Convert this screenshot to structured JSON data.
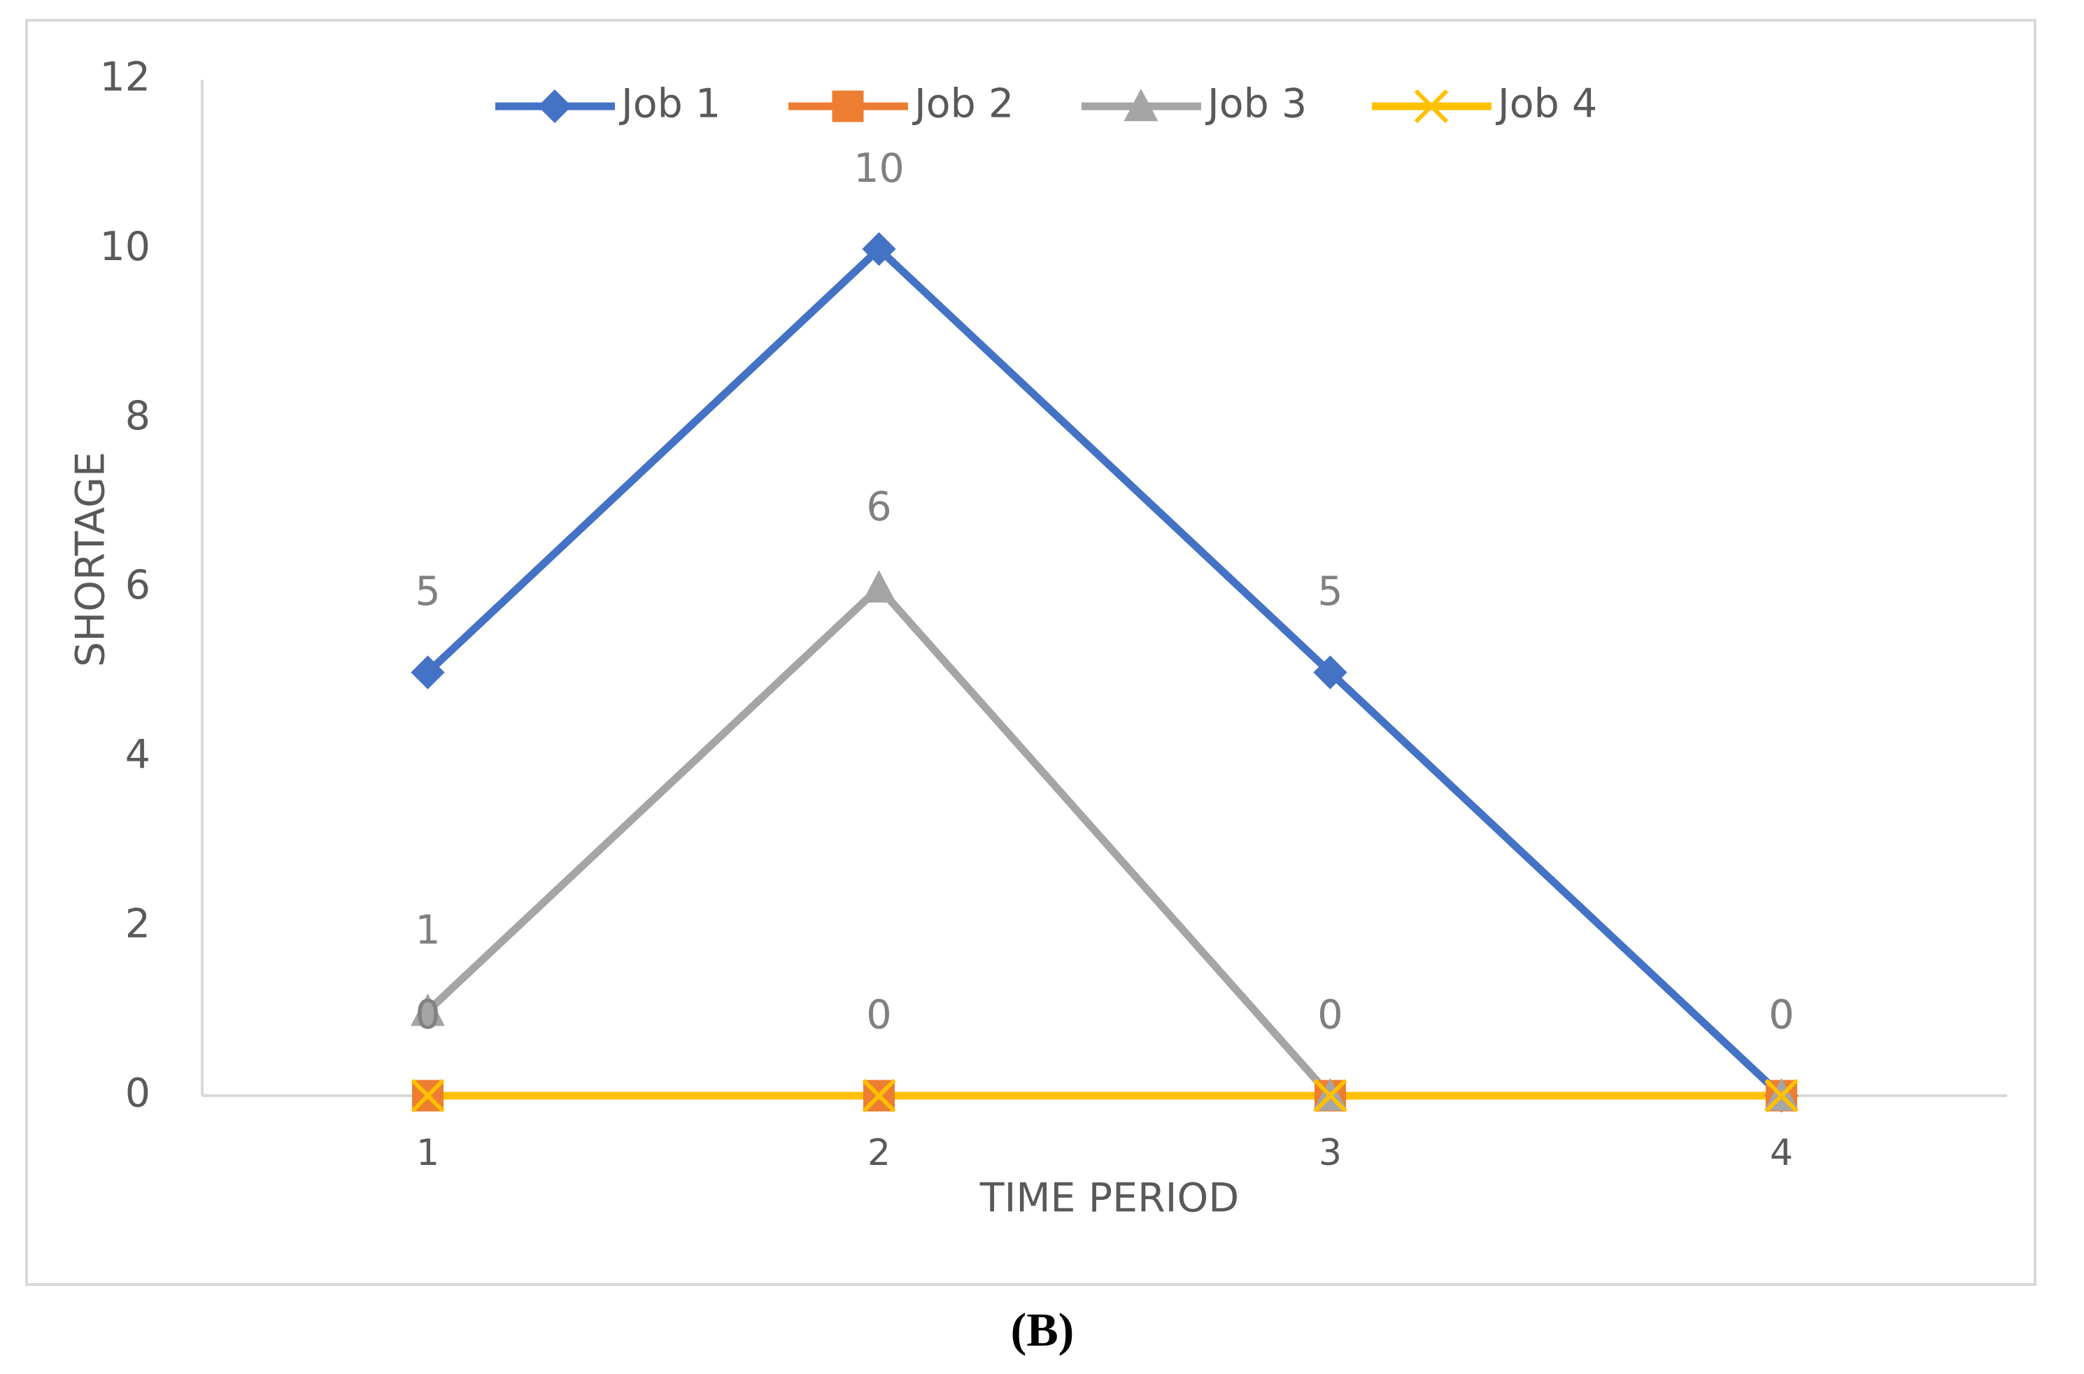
{
  "chart_data": {
    "type": "line",
    "categories": [
      "1",
      "2",
      "3",
      "4"
    ],
    "x_label": "TIME PERIOD",
    "y_label": "SHORTAGE",
    "series": [
      {
        "name": "Job 1",
        "color": "#4472c4",
        "marker": "diamond",
        "values": [
          5,
          10,
          5,
          0
        ]
      },
      {
        "name": "Job 2",
        "color": "#ed7d31",
        "marker": "square",
        "values": [
          0,
          0,
          0,
          0
        ]
      },
      {
        "name": "Job 3",
        "color": "#a5a5a5",
        "marker": "triangle",
        "values": [
          1,
          6,
          0,
          0
        ]
      },
      {
        "name": "Job 4",
        "color": "#ffc000",
        "marker": "x",
        "values": [
          0,
          0,
          0,
          0
        ]
      }
    ],
    "data_labels": true,
    "ylim": [
      0,
      12
    ],
    "yticks": [
      0,
      2,
      4,
      6,
      8,
      10,
      12
    ],
    "grid": false,
    "legend": "top"
  },
  "caption": "(B)"
}
